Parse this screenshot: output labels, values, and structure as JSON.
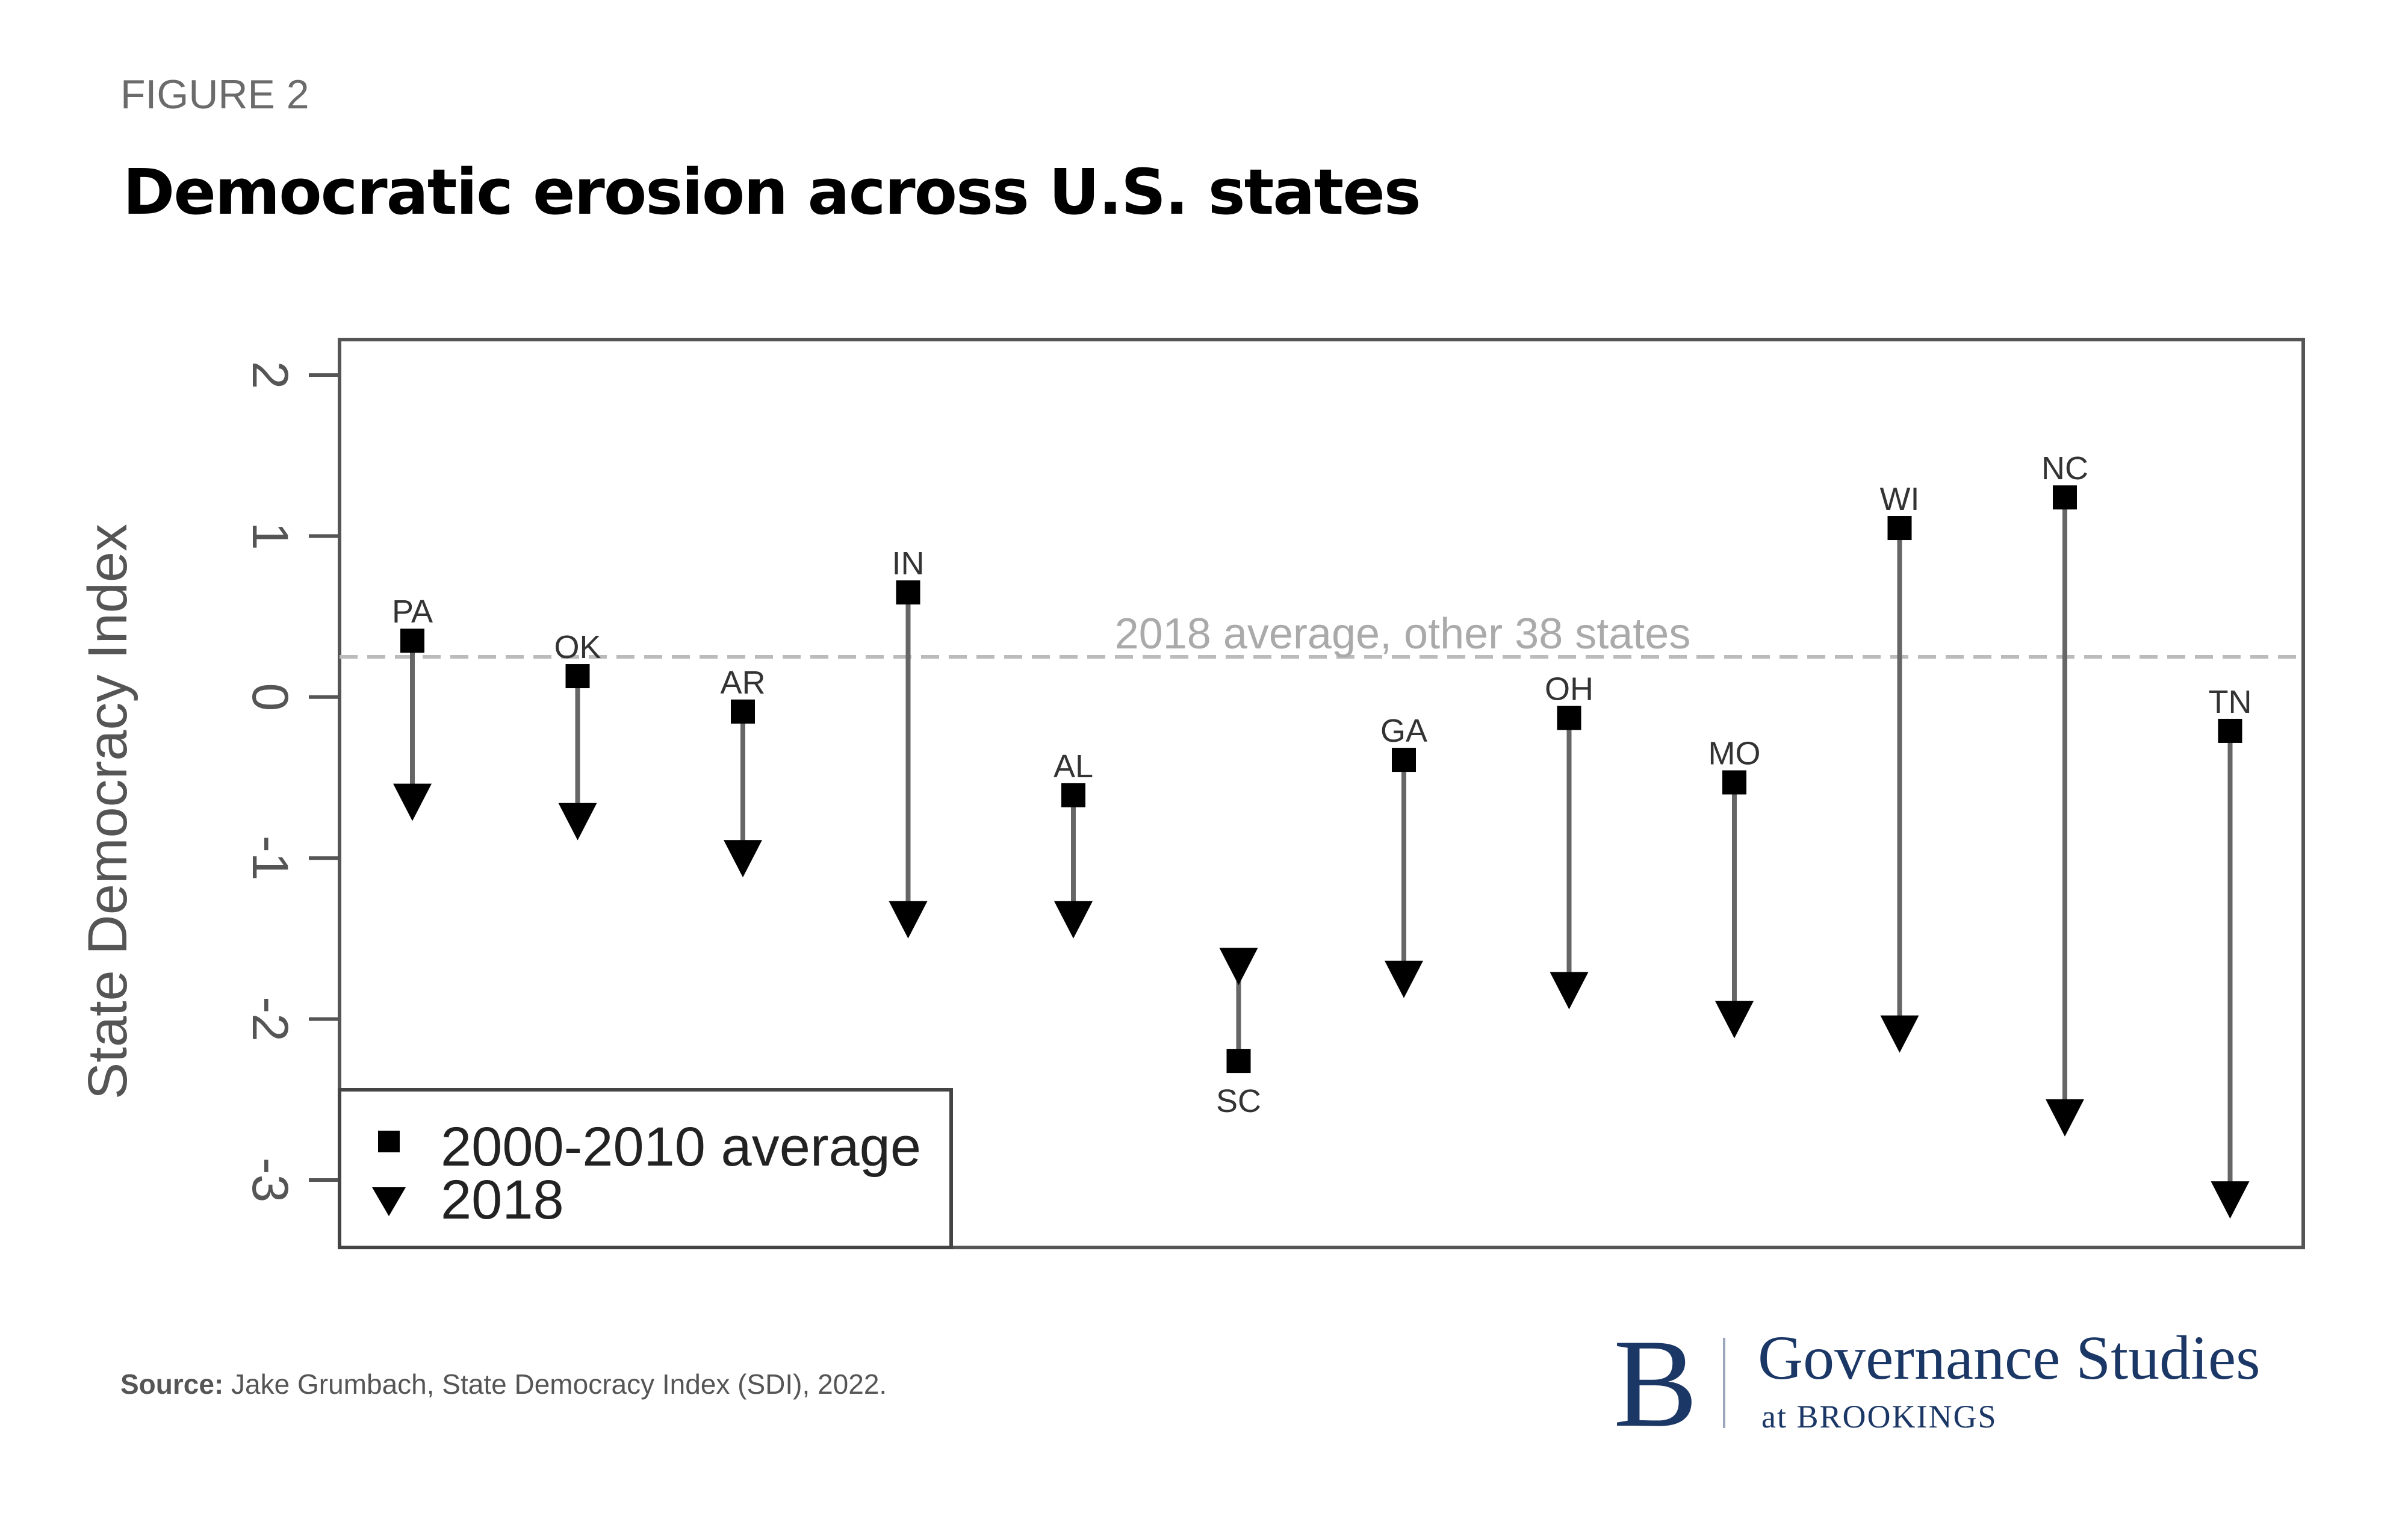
{
  "figure_label": "FIGURE 2",
  "title": "Democratic erosion across U.S. states",
  "source_label": "Source:",
  "source_text": " Jake Grumbach, State Democracy Index (SDI), 2022.",
  "logo": {
    "mark": "B",
    "name": "Governance Studies",
    "sub": "at BROOKINGS",
    "color": "#1b3766"
  },
  "chart_data": {
    "type": "scatter",
    "title": "",
    "xlabel": "",
    "ylabel": "State Democracy Index",
    "ylim": [
      -3.4,
      2.2
    ],
    "yticks": [
      2,
      1,
      0,
      -1,
      -2,
      -3
    ],
    "grid": false,
    "legend_placement": "bottom-left",
    "categories": [
      "PA",
      "OK",
      "AR",
      "IN",
      "AL",
      "SC",
      "GA",
      "OH",
      "MO",
      "WI",
      "NC",
      "TN"
    ],
    "series": [
      {
        "name": "2000-2010 average",
        "marker": "square",
        "values": [
          0.35,
          0.13,
          -0.09,
          0.65,
          -0.61,
          -2.26,
          -0.39,
          -0.13,
          -0.53,
          1.05,
          1.24,
          -0.21
        ]
      },
      {
        "name": "2018",
        "marker": "triangle-down",
        "values": [
          -0.65,
          -0.77,
          -1.0,
          -1.38,
          -1.38,
          -1.67,
          -1.75,
          -1.82,
          -2.0,
          -2.09,
          -2.61,
          -3.12
        ]
      }
    ],
    "reference_line": {
      "value": 0.25,
      "label": "2018 average, other 38 states",
      "style": "dashed",
      "color": "#bbbbbb"
    }
  }
}
